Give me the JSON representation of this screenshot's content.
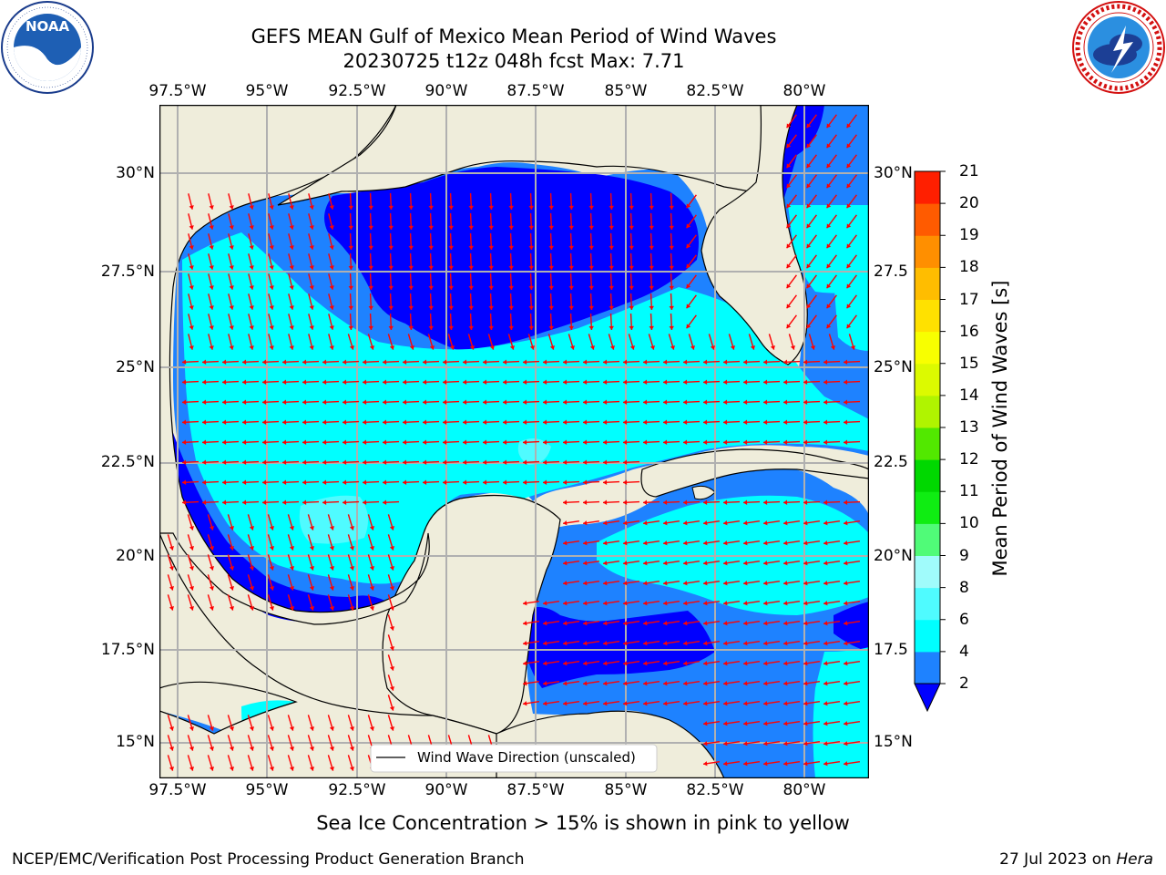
{
  "header": {
    "title_line1": "GEFS MEAN Gulf of Mexico Mean Period of Wind Waves",
    "title_line2": "20230725 t12z 048h fcst   Max: 7.71"
  },
  "logos": {
    "left_text": "NOAA",
    "left_ring_text": "NATIONAL OCEANIC AND ATMOSPHERIC ADMINISTRATION · U.S. DEPARTMENT OF COMMERCE",
    "right_ring_text": "NATIONAL WEATHER SERVICE"
  },
  "map": {
    "lon_labels": [
      "97.5°W",
      "95°W",
      "92.5°W",
      "90°W",
      "87.5°W",
      "85°W",
      "82.5°W",
      "80°W"
    ],
    "lat_labels_left": [
      "30°N",
      "27.5°N",
      "25°N",
      "22.5°N",
      "20°N",
      "17.5°N",
      "15°N"
    ],
    "lat_labels_right": [
      "30°N",
      "27.5",
      "25°N",
      "22.5",
      "20°N",
      "17.5",
      "15°N"
    ],
    "legend_label": "Wind Wave Direction (unscaled)",
    "colors": {
      "land": "#efeddb",
      "band_2_4": "#1e82ff",
      "band_4_6": "#00ffff",
      "band_6_8": "#4ffbff",
      "under_2": "#0000ff",
      "arrow": "#ff0000",
      "grid": "#b0b0b0"
    }
  },
  "colorbar": {
    "label": "Mean Period of Wind Waves [s]",
    "ticks": [
      "2",
      "4",
      "6",
      "8",
      "9",
      "10",
      "11",
      "12",
      "13",
      "14",
      "15",
      "16",
      "17",
      "18",
      "19",
      "20",
      "21"
    ],
    "colors": [
      "#1e82ff",
      "#00ffff",
      "#4ffbff",
      "#a0fbfb",
      "#50fb78",
      "#0fed12",
      "#00d800",
      "#52e800",
      "#b0f400",
      "#dcfa00",
      "#f8ff00",
      "#ffe100",
      "#ffbd00",
      "#ff8f00",
      "#ff5b00",
      "#ff1f00"
    ],
    "under_color": "#0000ff"
  },
  "footer": {
    "ice_note": "Sea Ice Concentration > 15% is shown in pink to yellow",
    "left": "NCEP/EMC/Verification Post Processing Product Generation Branch",
    "right_date": "27 Jul 2023 on ",
    "right_host": "Hera"
  }
}
